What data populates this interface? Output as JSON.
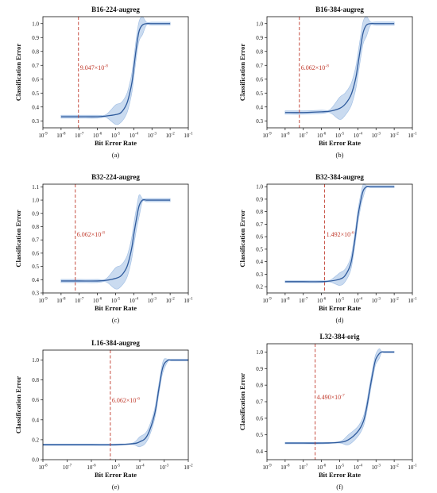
{
  "chart_data": [
    {
      "type": "line",
      "title": "B16-224-augreg",
      "caption": "(a)",
      "xlabel": "Bit Error Rate",
      "ylabel": "Classification Error",
      "xscale": "log",
      "x_ticks": [
        "10-9",
        "10-8",
        "10-7",
        "10-6",
        "10-5",
        "10-4",
        "10-3",
        "10-2",
        "10-1"
      ],
      "xlim": [
        1e-09,
        0.1
      ],
      "ylim": [
        0.25,
        1.05
      ],
      "y_ticks": [
        "0.3",
        "0.4",
        "0.5",
        "0.6",
        "0.7",
        "0.8",
        "0.9",
        "1.0"
      ],
      "threshold": {
        "x": 9.047e-08,
        "label_mantissa": "9.047×10",
        "label_exp": "-8"
      },
      "series": [
        {
          "x": [
            1e-08,
            1e-07,
            1e-06,
            3e-06,
            1e-05,
            2e-05,
            4e-05,
            6e-05,
            8e-05,
            0.0001,
            0.00015,
            0.0002,
            0.0003,
            0.0005,
            0.001,
            0.01
          ],
          "y": [
            0.33,
            0.33,
            0.33,
            0.335,
            0.345,
            0.36,
            0.42,
            0.5,
            0.58,
            0.68,
            0.86,
            0.95,
            0.99,
            1.0,
            1.0,
            1.0
          ]
        }
      ],
      "band_width": 0.07
    },
    {
      "type": "line",
      "title": "B16-384-augreg",
      "caption": "(b)",
      "xlabel": "Bit Error Rate",
      "ylabel": "Classification Error",
      "xscale": "log",
      "x_ticks": [
        "10-9",
        "10-8",
        "10-7",
        "10-6",
        "10-5",
        "10-4",
        "10-3",
        "10-2",
        "10-1"
      ],
      "xlim": [
        1e-09,
        0.1
      ],
      "ylim": [
        0.25,
        1.05
      ],
      "y_ticks": [
        "0.3",
        "0.4",
        "0.5",
        "0.6",
        "0.7",
        "0.8",
        "0.9",
        "1.0"
      ],
      "threshold": {
        "x": 6.062e-08,
        "label_mantissa": "6.062×10",
        "label_exp": "-8"
      },
      "series": [
        {
          "x": [
            1e-08,
            1e-07,
            1e-06,
            3e-06,
            1e-05,
            2e-05,
            4e-05,
            6e-05,
            8e-05,
            0.0001,
            0.00015,
            0.0002,
            0.0003,
            0.0005,
            0.001,
            0.01
          ],
          "y": [
            0.36,
            0.36,
            0.365,
            0.37,
            0.39,
            0.42,
            0.48,
            0.55,
            0.62,
            0.7,
            0.85,
            0.94,
            0.99,
            1.0,
            1.0,
            1.0
          ]
        }
      ],
      "band_width": 0.08
    },
    {
      "type": "line",
      "title": "B32-224-augreg",
      "caption": "(c)",
      "xlabel": "Bit Error Rate",
      "ylabel": "Classification Error",
      "xscale": "log",
      "x_ticks": [
        "10-9",
        "10-8",
        "10-7",
        "10-6",
        "10-5",
        "10-4",
        "10-3",
        "10-2",
        "10-1"
      ],
      "xlim": [
        1e-09,
        0.1
      ],
      "ylim": [
        0.3,
        1.12
      ],
      "y_ticks": [
        "0.3",
        "0.4",
        "0.5",
        "0.6",
        "0.7",
        "0.8",
        "0.9",
        "1.0",
        "1.1"
      ],
      "threshold": {
        "x": 6.062e-08,
        "label_mantissa": "6.062×10",
        "label_exp": "-8"
      },
      "series": [
        {
          "x": [
            1e-08,
            1e-07,
            1e-06,
            3e-06,
            1e-05,
            2e-05,
            4e-05,
            6e-05,
            8e-05,
            0.0001,
            0.00015,
            0.0002,
            0.0003,
            0.0005,
            0.001,
            0.01
          ],
          "y": [
            0.39,
            0.39,
            0.39,
            0.395,
            0.41,
            0.43,
            0.49,
            0.57,
            0.65,
            0.74,
            0.88,
            0.96,
            1.0,
            1.0,
            1.0,
            1.0
          ]
        }
      ],
      "band_width": 0.08
    },
    {
      "type": "line",
      "title": "B32-384-augreg",
      "caption": "(d)",
      "xlabel": "Bit Error Rate",
      "ylabel": "Classification Error",
      "xscale": "log",
      "x_ticks": [
        "10-9",
        "10-8",
        "10-7",
        "10-6",
        "10-5",
        "10-4",
        "10-3",
        "10-2",
        "10-1"
      ],
      "xlim": [
        1e-09,
        0.1
      ],
      "ylim": [
        0.15,
        1.02
      ],
      "y_ticks": [
        "0.2",
        "0.3",
        "0.4",
        "0.5",
        "0.6",
        "0.7",
        "0.8",
        "0.9",
        "1.0"
      ],
      "threshold": {
        "x": 1.492e-06,
        "label_mantissa": "1.492×10",
        "label_exp": "-6"
      },
      "series": [
        {
          "x": [
            1e-08,
            1e-07,
            1e-06,
            3e-06,
            1e-05,
            2e-05,
            4e-05,
            6e-05,
            8e-05,
            0.0001,
            0.00015,
            0.0002,
            0.0003,
            0.0005,
            0.001,
            0.01
          ],
          "y": [
            0.24,
            0.24,
            0.24,
            0.245,
            0.26,
            0.29,
            0.38,
            0.52,
            0.65,
            0.76,
            0.9,
            0.97,
            1.0,
            1.0,
            1.0,
            1.0
          ]
        }
      ],
      "band_width": 0.05
    },
    {
      "type": "line",
      "title": "L16-384-augreg",
      "caption": "(e)",
      "xlabel": "Bit Error Rate",
      "ylabel": "Classification Error",
      "xscale": "log",
      "x_ticks": [
        "10-8",
        "10-7",
        "10-6",
        "10-5",
        "10-4",
        "10-3",
        "10-2"
      ],
      "xlim": [
        1e-08,
        0.01
      ],
      "ylim": [
        0.0,
        1.1
      ],
      "y_ticks": [
        "0.0",
        "0.2",
        "0.4",
        "0.6",
        "0.8",
        "1.0"
      ],
      "threshold": {
        "x": 6.062e-06,
        "label_mantissa": "6.062×10",
        "label_exp": "-6"
      },
      "series": [
        {
          "x": [
            1e-08,
            1e-07,
            1e-06,
            1e-05,
            5e-05,
            0.0001,
            0.0002,
            0.0004,
            0.0006,
            0.0008,
            0.001,
            0.0015,
            0.002,
            0.01
          ],
          "y": [
            0.15,
            0.15,
            0.15,
            0.15,
            0.16,
            0.18,
            0.24,
            0.45,
            0.7,
            0.88,
            0.96,
            1.0,
            1.0,
            1.0
          ]
        }
      ],
      "band_width": 0.05
    },
    {
      "type": "line",
      "title": "L32-384-orig",
      "caption": "(f)",
      "xlabel": "Bit Error Rate",
      "ylabel": "Classification Error",
      "xscale": "log",
      "x_ticks": [
        "10-9",
        "10-8",
        "10-7",
        "10-6",
        "10-5",
        "10-4",
        "10-3",
        "10-2",
        "10-1"
      ],
      "xlim": [
        1e-09,
        0.1
      ],
      "ylim": [
        0.35,
        1.05
      ],
      "y_ticks": [
        "0.4",
        "0.5",
        "0.6",
        "0.7",
        "0.8",
        "0.9",
        "1.0"
      ],
      "threshold": {
        "x": 4.49e-07,
        "label_mantissa": "4.490×10",
        "label_exp": "-7"
      },
      "series": [
        {
          "x": [
            1e-08,
            1e-07,
            1e-06,
            1e-05,
            3e-05,
            0.0001,
            0.0002,
            0.0003,
            0.0005,
            0.0008,
            0.001,
            0.0015,
            0.002,
            0.003,
            0.01
          ],
          "y": [
            0.45,
            0.45,
            0.45,
            0.455,
            0.47,
            0.52,
            0.58,
            0.66,
            0.8,
            0.92,
            0.96,
            0.99,
            1.0,
            1.0,
            1.0
          ]
        }
      ],
      "band_width": 0.03
    }
  ],
  "colors": {
    "line": "#2e5a9c",
    "band": "#9fbde3",
    "threshold": "#c0392b",
    "axis": "#111111"
  }
}
